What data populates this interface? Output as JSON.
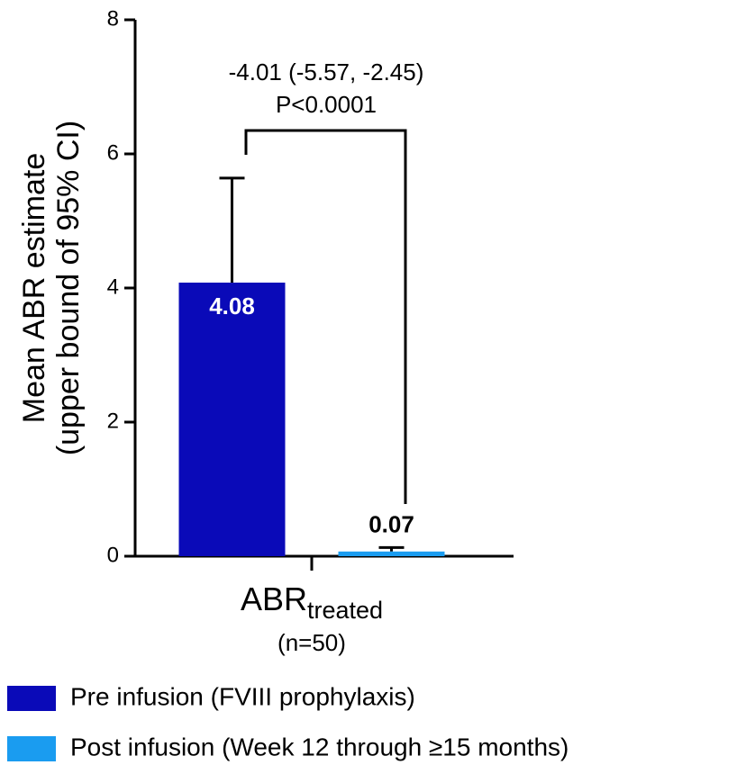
{
  "chart_data": {
    "type": "bar",
    "y_label_lines": [
      "Mean ABR estimate",
      "(upper bound of 95% CI)"
    ],
    "categories": [
      "ABR"
    ],
    "category_subscript": [
      "treated"
    ],
    "category_note": [
      "(n=50)"
    ],
    "series": [
      {
        "name": "Pre infusion (FVIII prophylaxis)",
        "color": "#0a0ab8",
        "values": [
          4.08
        ],
        "error_upper": [
          5.64
        ],
        "value_label_color": "#ffffff"
      },
      {
        "name": "Post infusion (Week 12 through ≥15 months)",
        "color": "#1a9cf0",
        "values": [
          0.07
        ],
        "error_upper": [
          0.13
        ],
        "value_label_color": "#000000"
      }
    ],
    "annotation_lines": [
      "-4.01 (-5.57, -2.45)",
      "P<0.0001"
    ],
    "ylim": [
      0,
      8
    ],
    "yticks": [
      0,
      2,
      4,
      6,
      8
    ],
    "grid": false
  }
}
